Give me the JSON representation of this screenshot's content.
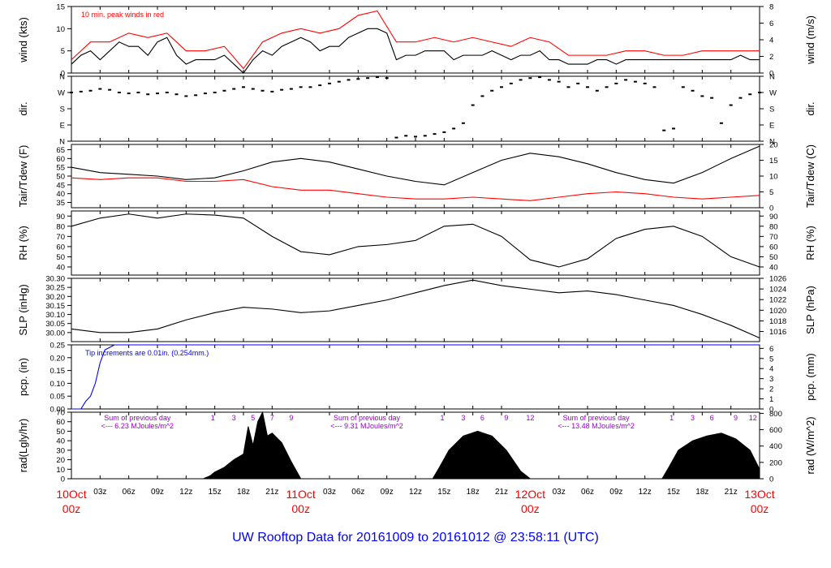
{
  "title": "UW Rooftop Data for 20161009  to  20161012 @ 23:58:11  (UTC)",
  "colors": {
    "black": "#000000",
    "red": "#ff0000",
    "blue": "#0000ff",
    "magenta": "#9900cc",
    "title": "#0000ff",
    "date": "#ff0000"
  },
  "x_axis": {
    "range_hours": [
      0,
      72
    ],
    "tick_labels": [
      "03z",
      "06z",
      "09z",
      "12z",
      "15z",
      "18z",
      "21z",
      "03z",
      "06z",
      "09z",
      "12z",
      "15z",
      "18z",
      "21z",
      "03z",
      "06z",
      "09z",
      "12z",
      "15z",
      "18z",
      "21z"
    ],
    "tick_hours": [
      3,
      6,
      9,
      12,
      15,
      18,
      21,
      27,
      30,
      33,
      36,
      39,
      42,
      45,
      51,
      54,
      57,
      60,
      63,
      66,
      69
    ],
    "dates": [
      {
        "hour": 0,
        "day": "10Oct",
        "time": "00z"
      },
      {
        "hour": 24,
        "day": "11Oct",
        "time": "00z"
      },
      {
        "hour": 48,
        "day": "12Oct",
        "time": "00z"
      },
      {
        "hour": 72,
        "day": "13Oct",
        "time": "00z"
      }
    ]
  },
  "chart_data": [
    {
      "type": "line",
      "key": "wind",
      "ylabel_left": "wind (kts)",
      "ylabel_right": "wind (m/s)",
      "ylim": [
        0,
        15
      ],
      "ticks_left": [
        "0",
        "5",
        "10",
        "15"
      ],
      "ticks_left_vals": [
        0,
        5,
        10,
        15
      ],
      "ylim_right": [
        0,
        8
      ],
      "ticks_right": [
        "0",
        "2",
        "4",
        "6",
        "8"
      ],
      "ticks_right_vals": [
        0,
        2,
        4,
        6,
        8
      ],
      "annotation": "10 min. peak winds in red",
      "series": [
        {
          "name": "wind",
          "color": "#000000",
          "x": [
            0,
            1,
            2,
            3,
            4,
            5,
            6,
            7,
            8,
            9,
            10,
            11,
            12,
            13,
            14,
            15,
            16,
            17,
            18,
            19,
            20,
            21,
            22,
            23,
            24,
            25,
            26,
            27,
            28,
            29,
            30,
            31,
            32,
            33,
            34,
            35,
            36,
            37,
            38,
            39,
            40,
            41,
            42,
            43,
            44,
            45,
            46,
            47,
            48,
            49,
            50,
            51,
            52,
            53,
            54,
            55,
            56,
            57,
            58,
            59,
            60,
            61,
            62,
            63,
            64,
            65,
            66,
            67,
            68,
            69,
            70,
            71,
            72
          ],
          "y": [
            2,
            4,
            5,
            3,
            5,
            7,
            6,
            6,
            4,
            7,
            8,
            4,
            2,
            3,
            3,
            3,
            4,
            2,
            0,
            3,
            5,
            4,
            6,
            7,
            8,
            7,
            5,
            6,
            6,
            8,
            9,
            10,
            10,
            9,
            3,
            4,
            4,
            5,
            5,
            5,
            3,
            4,
            4,
            4,
            5,
            4,
            3,
            4,
            4,
            5,
            3,
            3,
            2,
            2,
            2,
            3,
            3,
            2,
            3,
            3,
            3,
            3,
            3,
            3,
            3,
            3,
            3,
            3,
            3,
            3,
            4,
            3,
            3
          ]
        },
        {
          "name": "10 min. peak",
          "color": "#ff0000",
          "x": [
            0,
            2,
            4,
            6,
            8,
            10,
            12,
            14,
            16,
            18,
            20,
            22,
            24,
            26,
            28,
            30,
            32,
            34,
            36,
            38,
            40,
            42,
            44,
            46,
            48,
            50,
            52,
            54,
            56,
            58,
            60,
            62,
            64,
            66,
            68,
            70,
            72
          ],
          "y": [
            3,
            7,
            7,
            9,
            8,
            9,
            5,
            5,
            6,
            1,
            7,
            9,
            10,
            9,
            10,
            13,
            14,
            7,
            7,
            8,
            7,
            8,
            7,
            6,
            8,
            7,
            4,
            4,
            4,
            5,
            5,
            4,
            4,
            5,
            5,
            5,
            5
          ]
        }
      ]
    },
    {
      "type": "scatter",
      "key": "dir",
      "ylabel_left": "dir.",
      "ylabel_right": "dir.",
      "ylim": [
        0,
        360
      ],
      "ticks_left": [
        "N",
        "E",
        "S",
        "W",
        "N"
      ],
      "ticks_left_vals": [
        0,
        90,
        180,
        270,
        360
      ],
      "ticks_right": [
        "N",
        "E",
        "S",
        "W",
        "N"
      ],
      "ticks_right_vals": [
        0,
        90,
        180,
        270,
        360
      ],
      "series": [
        {
          "name": "direction",
          "color": "#000000",
          "x": [
            0,
            1,
            2,
            3,
            4,
            5,
            6,
            7,
            8,
            9,
            10,
            11,
            12,
            13,
            14,
            15,
            16,
            17,
            18,
            19,
            20,
            21,
            22,
            23,
            24,
            25,
            26,
            27,
            28,
            29,
            30,
            31,
            32,
            33,
            34,
            35,
            36,
            37,
            38,
            39,
            40,
            41,
            42,
            43,
            44,
            45,
            46,
            47,
            48,
            49,
            50,
            51,
            52,
            53,
            54,
            55,
            56,
            57,
            58,
            59,
            60,
            61,
            62,
            63,
            64,
            65,
            66,
            67,
            68,
            69,
            70,
            71,
            72
          ],
          "y": [
            270,
            275,
            280,
            290,
            285,
            270,
            265,
            270,
            260,
            265,
            270,
            260,
            250,
            255,
            265,
            270,
            280,
            290,
            300,
            290,
            280,
            275,
            285,
            290,
            300,
            300,
            310,
            320,
            330,
            340,
            345,
            350,
            355,
            350,
            20,
            30,
            25,
            30,
            40,
            50,
            70,
            100,
            200,
            250,
            280,
            300,
            320,
            340,
            350,
            355,
            340,
            330,
            300,
            320,
            300,
            280,
            300,
            320,
            340,
            330,
            320,
            300,
            60,
            70,
            300,
            280,
            250,
            240,
            100,
            200,
            240,
            260,
            270
          ]
        }
      ]
    },
    {
      "type": "line",
      "key": "temp",
      "ylabel_left": "Tair/Tdew (F)",
      "ylabel_right": "Tair/Tdew (C)",
      "ylim": [
        32,
        68
      ],
      "ticks_left": [
        "35",
        "40",
        "45",
        "50",
        "55",
        "60",
        "65"
      ],
      "ticks_left_vals": [
        35,
        40,
        45,
        50,
        55,
        60,
        65
      ],
      "ylim_right": [
        0,
        20
      ],
      "ticks_right": [
        "0",
        "5",
        "10",
        "15",
        "20"
      ],
      "ticks_right_vals": [
        0,
        5,
        10,
        15,
        20
      ],
      "series": [
        {
          "name": "Tair",
          "color": "#000000",
          "x": [
            0,
            3,
            6,
            9,
            12,
            15,
            18,
            21,
            24,
            27,
            30,
            33,
            36,
            39,
            42,
            45,
            48,
            51,
            54,
            57,
            60,
            63,
            66,
            69,
            72
          ],
          "y": [
            55,
            52,
            51,
            50,
            48,
            49,
            53,
            58,
            60,
            58,
            54,
            50,
            47,
            45,
            52,
            59,
            63,
            61,
            57,
            52,
            48,
            46,
            52,
            60,
            67
          ]
        },
        {
          "name": "Tdew",
          "color": "#ff0000",
          "x": [
            0,
            3,
            6,
            9,
            12,
            15,
            18,
            21,
            24,
            27,
            30,
            33,
            36,
            39,
            42,
            45,
            48,
            51,
            54,
            57,
            60,
            63,
            66,
            69,
            72
          ],
          "y": [
            49,
            48,
            49,
            49,
            47,
            47,
            48,
            44,
            42,
            42,
            40,
            38,
            37,
            37,
            38,
            37,
            36,
            38,
            40,
            41,
            40,
            38,
            37,
            38,
            39
          ]
        }
      ]
    },
    {
      "type": "line",
      "key": "rh",
      "ylabel_left": "RH (%)",
      "ylabel_right": "RH (%)",
      "ylim": [
        32,
        95
      ],
      "ticks_left": [
        "40",
        "50",
        "60",
        "70",
        "80",
        "90"
      ],
      "ticks_left_vals": [
        40,
        50,
        60,
        70,
        80,
        90
      ],
      "ticks_right": [
        "40",
        "50",
        "60",
        "70",
        "80",
        "90"
      ],
      "ticks_right_vals": [
        40,
        50,
        60,
        70,
        80,
        90
      ],
      "series": [
        {
          "name": "RH",
          "color": "#000000",
          "x": [
            0,
            3,
            6,
            9,
            12,
            15,
            18,
            21,
            24,
            27,
            30,
            33,
            36,
            39,
            42,
            45,
            48,
            51,
            54,
            57,
            60,
            63,
            66,
            69,
            72
          ],
          "y": [
            80,
            88,
            92,
            88,
            92,
            91,
            88,
            70,
            55,
            52,
            60,
            62,
            66,
            80,
            82,
            70,
            47,
            40,
            48,
            68,
            77,
            80,
            70,
            50,
            40
          ]
        }
      ]
    },
    {
      "type": "line",
      "key": "slp",
      "ylabel_left": "SLP (inHg)",
      "ylabel_right": "SLP (hPa)",
      "ylim": [
        29.95,
        30.3
      ],
      "ticks_left": [
        "30.00",
        "30.05",
        "30.10",
        "30.15",
        "30.20",
        "30.25",
        "30.30"
      ],
      "ticks_left_vals": [
        30.0,
        30.05,
        30.1,
        30.15,
        30.2,
        30.25,
        30.3
      ],
      "ylim_right": [
        1014.1,
        1026
      ],
      "ticks_right": [
        "1016",
        "1018",
        "1020",
        "1022",
        "1024",
        "1026"
      ],
      "ticks_right_vals": [
        1016,
        1018,
        1020,
        1022,
        1024,
        1026
      ],
      "series": [
        {
          "name": "SLP",
          "color": "#000000",
          "x": [
            0,
            3,
            6,
            9,
            12,
            15,
            18,
            21,
            24,
            27,
            30,
            33,
            36,
            39,
            42,
            45,
            48,
            51,
            54,
            57,
            60,
            63,
            66,
            69,
            72
          ],
          "y": [
            30.02,
            30.0,
            30.0,
            30.02,
            30.07,
            30.11,
            30.14,
            30.13,
            30.11,
            30.12,
            30.15,
            30.18,
            30.22,
            30.26,
            30.29,
            30.26,
            30.24,
            30.22,
            30.23,
            30.21,
            30.18,
            30.15,
            30.1,
            30.04,
            29.97
          ]
        }
      ]
    },
    {
      "type": "line",
      "key": "pcp",
      "ylabel_left": "pcp. (in)",
      "ylabel_right": "pcp. (mm)",
      "ylim": [
        0,
        0.25
      ],
      "ticks_left": [
        "0.00",
        "0.05",
        "0.10",
        "0.15",
        "0.20",
        "0.25"
      ],
      "ticks_left_vals": [
        0,
        0.05,
        0.1,
        0.15,
        0.2,
        0.25
      ],
      "ylim_right": [
        0,
        6.35
      ],
      "ticks_right": [
        "0",
        "1",
        "2",
        "3",
        "4",
        "5",
        "6"
      ],
      "ticks_right_vals": [
        0,
        1,
        2,
        3,
        4,
        5,
        6
      ],
      "annotation": "Tip increments are 0.01in. (0.254mm.)",
      "series": [
        {
          "name": "precip",
          "color": "#0000ff",
          "x": [
            0,
            1,
            1.5,
            2,
            2.5,
            3,
            3.5,
            4,
            4.5,
            5,
            72
          ],
          "y": [
            0,
            0,
            0.03,
            0.05,
            0.1,
            0.18,
            0.23,
            0.24,
            0.25,
            0.25,
            0.25
          ]
        }
      ]
    },
    {
      "type": "area",
      "key": "rad",
      "ylabel_left": "rad(Lgly/hr)",
      "ylabel_right": "rad (W/m^2)",
      "ylim": [
        0,
        70
      ],
      "ticks_left": [
        "0",
        "10",
        "20",
        "30",
        "40",
        "50",
        "60",
        "70"
      ],
      "ticks_left_vals": [
        0,
        10,
        20,
        30,
        40,
        50,
        60,
        70
      ],
      "ylim_right": [
        0,
        814
      ],
      "ticks_right": [
        "0",
        "200",
        "400",
        "600",
        "800"
      ],
      "ticks_right_vals": [
        0,
        200,
        400,
        600,
        800
      ],
      "hour_markers": [
        "1",
        "3",
        "5",
        "7",
        "9",
        "1",
        "3",
        "6",
        "9",
        "12",
        "1",
        "3",
        "6",
        "9",
        "12"
      ],
      "hour_marker_hours": [
        14.8,
        17,
        19,
        21,
        23,
        38.8,
        41,
        43,
        45.5,
        48,
        62.8,
        65,
        67,
        69.5,
        71.3
      ],
      "daily_sums": [
        {
          "text1": "Sum of previous day",
          "text2": "<--- 6.23 MJoules/m^2",
          "hour": 12
        },
        {
          "text1": "Sum of previous day",
          "text2": "<--- 9.31 MJoules/m^2",
          "hour": 36
        },
        {
          "text1": "Sum of previous day",
          "text2": "<--- 13.48 MJoules/m^2",
          "hour": 60
        }
      ],
      "series": [
        {
          "name": "radiation",
          "color": "#000000",
          "x": [
            0,
            13.8,
            14.5,
            15,
            16,
            17,
            18,
            18.5,
            19,
            19.5,
            20,
            20.5,
            21,
            22,
            23,
            24,
            37.8,
            38.5,
            39.5,
            41,
            42.5,
            44,
            45.5,
            47,
            48,
            61.8,
            62.5,
            63.5,
            65,
            66.5,
            68,
            69.5,
            71,
            72
          ],
          "y": [
            0,
            0,
            3,
            7,
            12,
            20,
            26,
            55,
            35,
            60,
            70,
            45,
            48,
            38,
            18,
            0,
            0,
            12,
            30,
            45,
            50,
            45,
            30,
            8,
            0,
            0,
            12,
            30,
            40,
            45,
            48,
            42,
            30,
            10
          ]
        }
      ]
    }
  ]
}
